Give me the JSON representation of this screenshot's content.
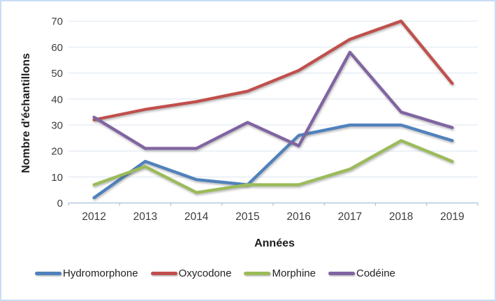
{
  "chart_data": {
    "type": "line",
    "title": "",
    "categories": [
      "2012",
      "2013",
      "2014",
      "2015",
      "2016",
      "2017",
      "2018",
      "2019"
    ],
    "series": [
      {
        "name": "Hydromorphone",
        "color": "#4F81BD",
        "values": [
          2,
          16,
          9,
          7,
          26,
          30,
          30,
          24
        ]
      },
      {
        "name": "Oxycodone",
        "color": "#C0504D",
        "values": [
          32,
          36,
          39,
          43,
          51,
          63,
          70,
          46
        ]
      },
      {
        "name": "Morphine",
        "color": "#9BBB59",
        "values": [
          7,
          14,
          4,
          7,
          7,
          13,
          24,
          16
        ]
      },
      {
        "name": "Codéine",
        "color": "#8064A2",
        "values": [
          33,
          21,
          21,
          31,
          22,
          58,
          35,
          29
        ]
      }
    ],
    "xlabel": "Années",
    "ylabel": "Nombre d'échantillons",
    "ylim": [
      0,
      70
    ],
    "yticks": [
      0,
      10,
      20,
      30,
      40,
      50,
      60,
      70
    ],
    "grid": true,
    "legend_position": "bottom"
  },
  "styles": {
    "gridline_color": "#DCE6F1",
    "axis_line_color": "#A9C0DC",
    "tick_label_color": "#3D3D3D",
    "frame_border_color": "#C9DCF2",
    "background": "#FFFFFF"
  }
}
